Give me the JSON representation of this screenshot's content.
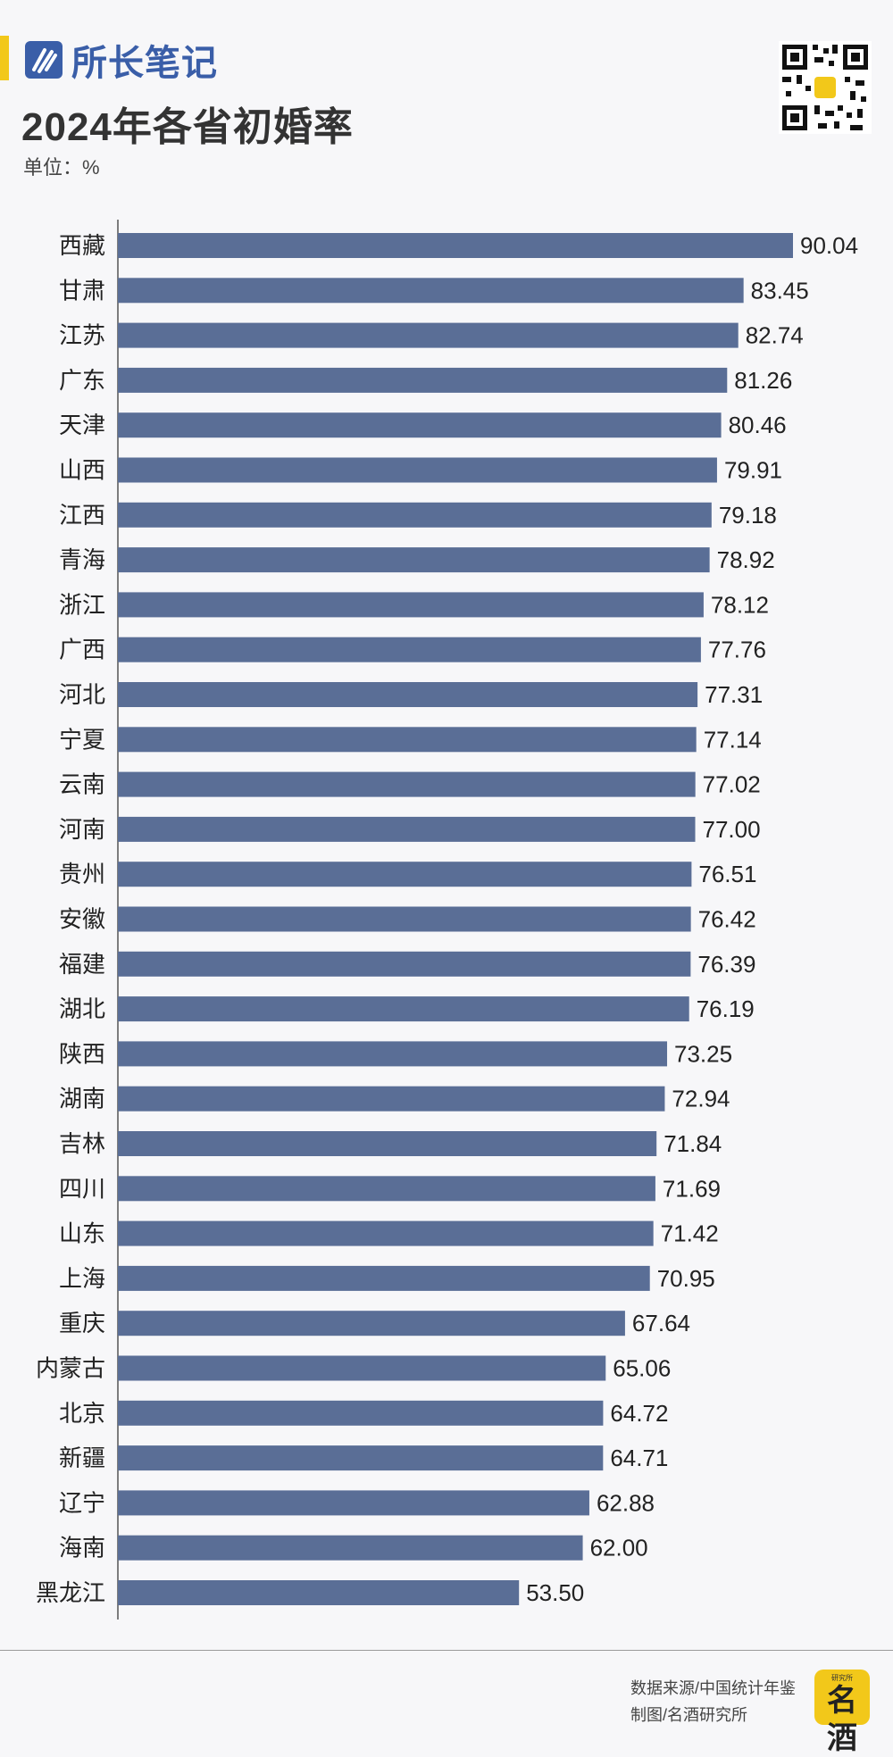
{
  "brand": {
    "name": "所长笔记"
  },
  "header": {
    "title": "2024年各省初婚率",
    "unit": "单位：%"
  },
  "footer": {
    "source": "数据来源/中国统计年鉴",
    "credit": "制图/名酒研究所",
    "stamp_top": "研究所",
    "stamp_main": "名酒"
  },
  "colors": {
    "bar": "#5a6e96",
    "accent": "#f2c81a",
    "brand": "#3a5ea8"
  },
  "chart_data": {
    "type": "bar",
    "orientation": "horizontal",
    "title": "2024年各省初婚率",
    "xlabel": "",
    "ylabel": "",
    "unit": "%",
    "categories": [
      "西藏",
      "甘肃",
      "江苏",
      "广东",
      "天津",
      "山西",
      "江西",
      "青海",
      "浙江",
      "广西",
      "河北",
      "宁夏",
      "云南",
      "河南",
      "贵州",
      "安徽",
      "福建",
      "湖北",
      "陕西",
      "湖南",
      "吉林",
      "四川",
      "山东",
      "上海",
      "重庆",
      "内蒙古",
      "北京",
      "新疆",
      "辽宁",
      "海南",
      "黑龙江"
    ],
    "values": [
      90.04,
      83.45,
      82.74,
      81.26,
      80.46,
      79.91,
      79.18,
      78.92,
      78.12,
      77.76,
      77.31,
      77.14,
      77.02,
      77.0,
      76.51,
      76.42,
      76.39,
      76.19,
      73.25,
      72.94,
      71.84,
      71.69,
      71.42,
      70.95,
      67.64,
      65.06,
      64.72,
      64.71,
      62.88,
      62.0,
      53.5
    ],
    "value_labels": [
      "90.04",
      "83.45",
      "82.74",
      "81.26",
      "80.46",
      "79.91",
      "79.18",
      "78.92",
      "78.12",
      "77.76",
      "77.31",
      "77.14",
      "77.02",
      "77.00",
      "76.51",
      "76.42",
      "76.39",
      "76.19",
      "73.25",
      "72.94",
      "71.84",
      "71.69",
      "71.42",
      "70.95",
      "67.64",
      "65.06",
      "64.72",
      "64.71",
      "62.88",
      "62.00",
      "53.50"
    ],
    "xlim": [
      0,
      90.04
    ],
    "grid": false,
    "legend": "none"
  }
}
